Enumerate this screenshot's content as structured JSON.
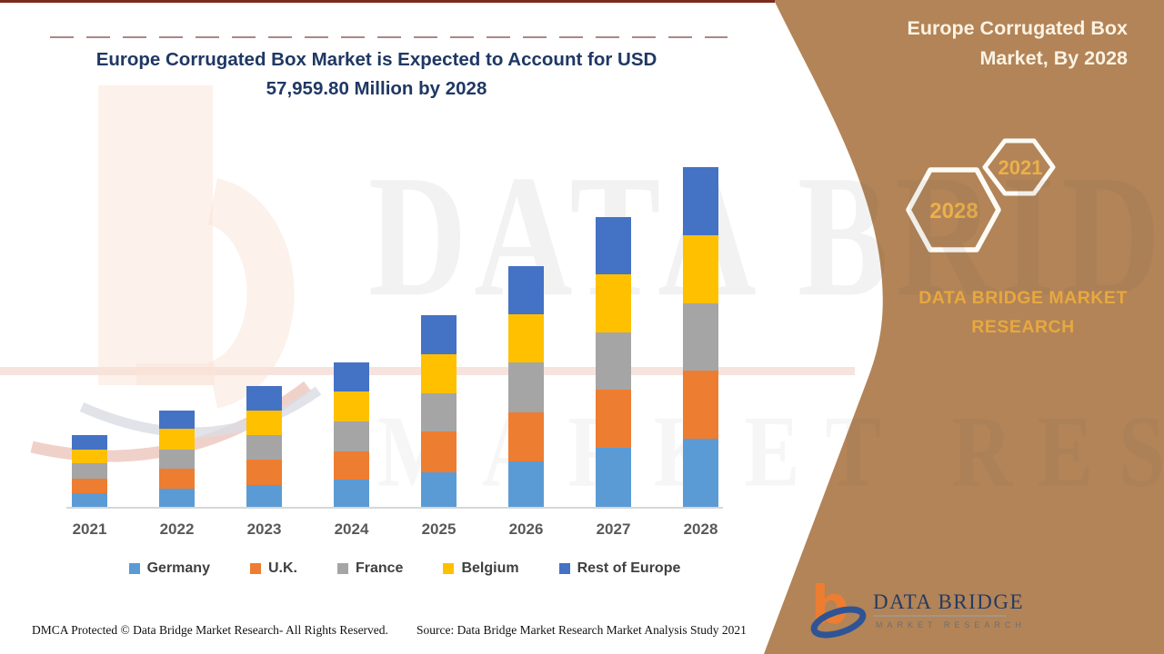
{
  "title": {
    "line1": "Europe Corrugated Box Market is Expected to Account for USD",
    "line2": "57,959.80 Million by 2028"
  },
  "panel": {
    "title_line1": "Europe Corrugated Box",
    "title_line2": "Market, By 2028",
    "brand_text": "DATA BRIDGE MARKET RESEARCH",
    "hex_large_label": "2028",
    "hex_small_label": "2021"
  },
  "footer": {
    "dmca": "DMCA Protected © Data Bridge Market Research- All Rights Reserved.",
    "source": "Source: Data Bridge Market Research Market Analysis Study 2021"
  },
  "logo": {
    "name": "DATA BRIDGE",
    "subtitle": "MARKET RESEARCH"
  },
  "watermark": {
    "line1": "DATA BRIDGE",
    "line2": "MARKET RESEARCH"
  },
  "colors": {
    "panel_brown": "#B28457",
    "title_navy": "#1F3864",
    "gold_accent": "#E7A83F",
    "axis_label_gray": "#595959",
    "legend_label_gray": "#404040",
    "logo_orange": "#ED7D31",
    "logo_navy": "#2F5496"
  },
  "chart_data": {
    "type": "bar",
    "stacked": true,
    "title": "Europe Corrugated Box Market is Expected to Account for USD 57,959.80 Million by 2028",
    "unit": "USD Million",
    "xlabel": "",
    "ylabel": "",
    "ylim": [
      0,
      60000
    ],
    "grid": false,
    "legend_position": "bottom",
    "categories": [
      "2021",
      "2022",
      "2023",
      "2024",
      "2025",
      "2026",
      "2027",
      "2028"
    ],
    "series": [
      {
        "name": "Germany",
        "color": "#5B9BD5",
        "values": [
          2470,
          3245,
          3865,
          4790,
          6030,
          7880,
          10200,
          11745
        ]
      },
      {
        "name": "U.K.",
        "color": "#ED7D31",
        "values": [
          2470,
          3400,
          4330,
          4790,
          6955,
          8345,
          9890,
          11590
        ]
      },
      {
        "name": "France",
        "color": "#A5A5A5",
        "values": [
          2630,
          3245,
          4170,
          5100,
          6490,
          8500,
          9735,
          11435
        ]
      },
      {
        "name": "Belgium",
        "color": "#FFC000",
        "values": [
          2320,
          3555,
          4170,
          5100,
          6645,
          8190,
          9890,
          11590
        ]
      },
      {
        "name": "Rest of Europe",
        "color": "#4472C4",
        "values": [
          2470,
          3090,
          4170,
          4945,
          6645,
          8190,
          9735,
          11599.8
        ]
      }
    ],
    "totals_estimated": [
      12360,
      16535,
      20705,
      24725,
      32765,
      41105,
      49450,
      57959.8
    ],
    "labeled_value": "2028 total = USD 57,959.80 Million"
  }
}
